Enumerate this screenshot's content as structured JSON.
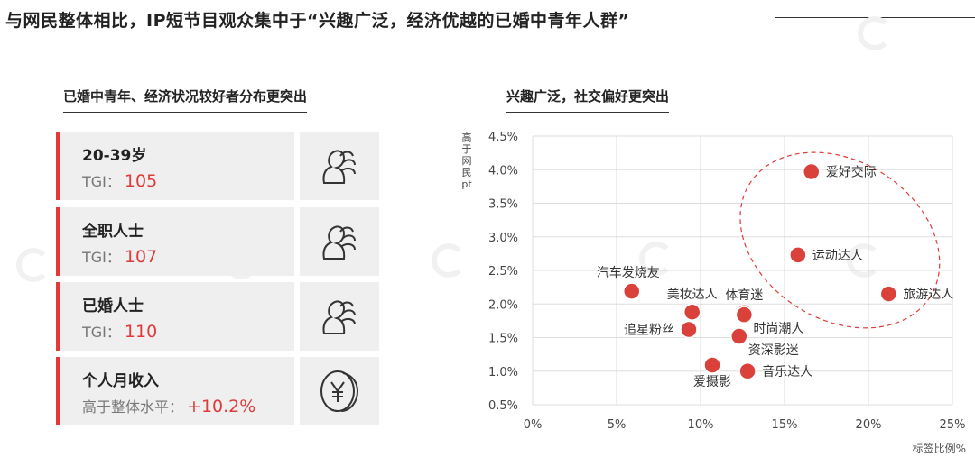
{
  "headline": "与网民整体相比，IP短节目观众集中于“兴趣广泛，经济优越的已婚中青年人群”",
  "left_title": "已婚中青年、经济状况较好者分布更突出",
  "right_title": "兴趣广泛，社交偏好更突出",
  "cards": [
    {
      "label": "20-39岁",
      "metric_label": "TGI",
      "metric_sep": "：",
      "value": "105",
      "icon": "person-cluster-icon"
    },
    {
      "label": "全职人士",
      "metric_label": "TGI",
      "metric_sep": "：",
      "value": "107",
      "icon": "person-cluster-icon"
    },
    {
      "label": "已婚人士",
      "metric_label": "TGI",
      "metric_sep": "：",
      "value": "110",
      "icon": "person-cluster-icon"
    },
    {
      "label": "个人月收入",
      "metric_label": "高于整体水平",
      "metric_sep": "：",
      "value": "+10.2%",
      "icon": "yuan-coin-icon"
    }
  ],
  "colors": {
    "accent": "#e03a3a",
    "card_bg": "#efefef",
    "point_fill": "#d9413a",
    "grid": "#dddddd"
  },
  "chart_data": {
    "type": "scatter",
    "xlabel": "标签比例%",
    "ylabel": "高于网民pt",
    "xlim": [
      0,
      25
    ],
    "ylim": [
      0.5,
      4.5
    ],
    "x_ticks": [
      "0%",
      "5%",
      "10%",
      "15%",
      "20%",
      "25%"
    ],
    "y_ticks": [
      "0.5%",
      "1.0%",
      "1.5%",
      "2.0%",
      "2.5%",
      "3.0%",
      "3.5%",
      "4.0%",
      "4.5%"
    ],
    "grid": true,
    "highlight": "dashed ellipse around 爱好交际, 运动达人, 旅游达人",
    "points": [
      {
        "label": "爱好交际",
        "x": 16.6,
        "y": 3.97,
        "label_pos": "right"
      },
      {
        "label": "运动达人",
        "x": 15.8,
        "y": 2.73,
        "label_pos": "right"
      },
      {
        "label": "旅游达人",
        "x": 21.2,
        "y": 2.15,
        "label_pos": "right"
      },
      {
        "label": "汽车发烧友",
        "x": 5.9,
        "y": 2.19,
        "label_pos": "top-left"
      },
      {
        "label": "美妆达人",
        "x": 9.5,
        "y": 1.88,
        "label_pos": "top"
      },
      {
        "label": "体育迷",
        "x": 12.6,
        "y": 1.87,
        "label_pos": "top"
      },
      {
        "label": "时尚潮人",
        "x": 12.6,
        "y": 1.84,
        "label_pos": "bottom-right"
      },
      {
        "label": "追星粉丝",
        "x": 9.3,
        "y": 1.62,
        "label_pos": "left"
      },
      {
        "label": "资深影迷",
        "x": 12.3,
        "y": 1.52,
        "label_pos": "bottom-right"
      },
      {
        "label": "爱摄影",
        "x": 10.7,
        "y": 1.09,
        "label_pos": "bottom"
      },
      {
        "label": "音乐达人",
        "x": 12.8,
        "y": 1.0,
        "label_pos": "right"
      }
    ]
  }
}
